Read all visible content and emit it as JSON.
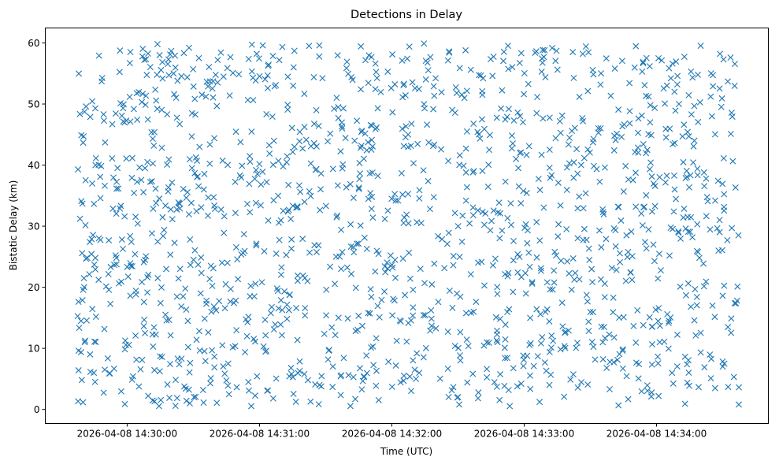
{
  "chart_data": {
    "type": "scatter",
    "title": "Detections in Delay",
    "xlabel": "Time (UTC)",
    "ylabel": "Bistatic Delay (km)",
    "x_units": "seconds relative to 2026-04-08 14:30:00 UTC",
    "xlim": [
      -37.1,
      290.7
    ],
    "ylim": [
      -2.3,
      62.45
    ],
    "x_ticks": [
      {
        "value": 0,
        "label": "2026-04-08 14:30:00"
      },
      {
        "value": 60,
        "label": "2026-04-08 14:31:00"
      },
      {
        "value": 120,
        "label": "2026-04-08 14:32:00"
      },
      {
        "value": 180,
        "label": "2026-04-08 14:33:00"
      },
      {
        "value": 240,
        "label": "2026-04-08 14:34:00"
      }
    ],
    "y_ticks": [
      {
        "value": 0,
        "label": "0"
      },
      {
        "value": 10,
        "label": "10"
      },
      {
        "value": 20,
        "label": "20"
      },
      {
        "value": 30,
        "label": "30"
      },
      {
        "value": 40,
        "label": "40"
      },
      {
        "value": 50,
        "label": "50"
      },
      {
        "value": 60,
        "label": "60"
      }
    ],
    "grid": false,
    "marker": "x",
    "series": [
      {
        "name": "detections",
        "color": "#1f77b4",
        "distribution": "approximately uniform",
        "count": 1500,
        "x_range": [
          -22.5,
          277.5
        ],
        "y_range": [
          0.5,
          60
        ]
      }
    ]
  }
}
